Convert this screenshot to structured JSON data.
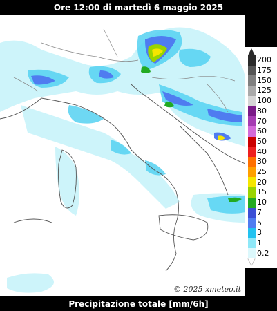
{
  "header": {
    "title": "Ore 12:00 di martedì 6 maggio 2025"
  },
  "footer": {
    "label": "Precipitazione totale [mm/6h]"
  },
  "copyright": "© 2025 xmeteo.it",
  "legend": {
    "levels": [
      {
        "label": "200",
        "color": "#2a2a2a"
      },
      {
        "label": "175",
        "color": "#555555"
      },
      {
        "label": "150",
        "color": "#808080"
      },
      {
        "label": "125",
        "color": "#aaaaaa"
      },
      {
        "label": "100",
        "color": "#d6d6d6"
      },
      {
        "label": "80",
        "color": "#7a1a88"
      },
      {
        "label": "70",
        "color": "#a63cb3"
      },
      {
        "label": "60",
        "color": "#d46ad9"
      },
      {
        "label": "50",
        "color": "#cc0000"
      },
      {
        "label": "40",
        "color": "#ee2020"
      },
      {
        "label": "30",
        "color": "#ff7000"
      },
      {
        "label": "25",
        "color": "#ffa000"
      },
      {
        "label": "20",
        "color": "#f5e600"
      },
      {
        "label": "15",
        "color": "#9ad400"
      },
      {
        "label": "10",
        "color": "#22aa22"
      },
      {
        "label": "7",
        "color": "#3b4fd6"
      },
      {
        "label": "5",
        "color": "#4f7cf0"
      },
      {
        "label": "3",
        "color": "#22c2f0"
      },
      {
        "label": "1",
        "color": "#8ee8f8"
      },
      {
        "label": "0.2",
        "color": "#dcf8fc"
      }
    ]
  }
}
